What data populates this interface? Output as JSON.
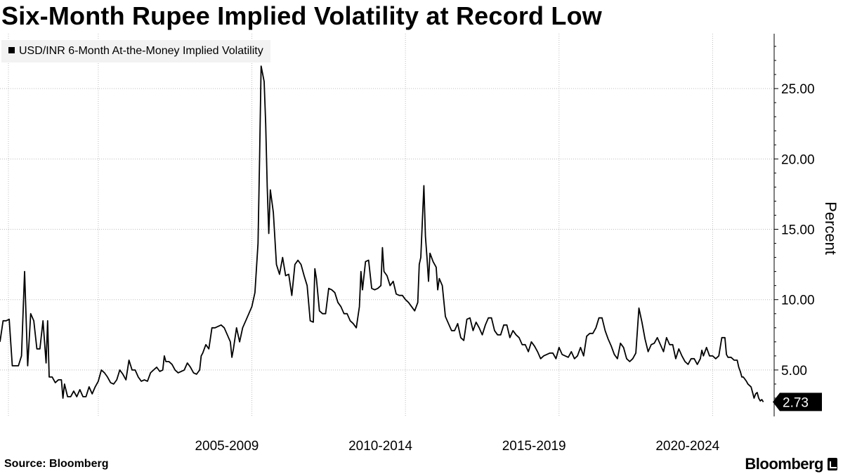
{
  "header": {
    "title": "Six-Month Rupee Implied Volatility at Record Low"
  },
  "legend": {
    "label": "USD/INR 6-Month At-the-Money Implied Volatility",
    "color": "#000000"
  },
  "footer": {
    "source": "Source: Bloomberg",
    "brand": "Bloomberg"
  },
  "chart_data": {
    "type": "line",
    "title": "Six-Month Rupee Implied Volatility at Record Low",
    "xlabel": "",
    "ylabel": "Percent",
    "ylim": [
      1.7,
      28.9
    ],
    "xlim": [
      2000.0,
      2024.7
    ],
    "y_ticks": [
      5,
      10,
      15,
      20,
      25
    ],
    "y_tick_labels": [
      "5.00",
      "10.00",
      "15.00",
      "20.00",
      "25.00"
    ],
    "x_tick_labels": [
      "2005-2009",
      "2010-2014",
      "2015-2019",
      "2020-2024"
    ],
    "x_label_centers": [
      2007.5,
      2012.5,
      2017.5,
      2022.5
    ],
    "x_gridlines": [
      2000.0,
      2003.2,
      2008.2,
      2013.2,
      2018.2,
      2023.2
    ],
    "grid": true,
    "y_axis_position": "right",
    "last_value": 2.73,
    "last_value_label": "2.73",
    "series": [
      {
        "name": "USD/INR 6-Month At-the-Money Implied Volatility",
        "color": "#000000",
        "points": [
          [
            2000.0,
            7.0
          ],
          [
            2000.1,
            8.5
          ],
          [
            2000.2,
            8.5
          ],
          [
            2000.3,
            8.6
          ],
          [
            2000.4,
            5.3
          ],
          [
            2000.5,
            5.3
          ],
          [
            2000.6,
            5.3
          ],
          [
            2000.7,
            6.0
          ],
          [
            2000.8,
            12.0
          ],
          [
            2000.9,
            5.3
          ],
          [
            2001.0,
            9.0
          ],
          [
            2001.1,
            8.5
          ],
          [
            2001.2,
            6.5
          ],
          [
            2001.3,
            6.5
          ],
          [
            2001.4,
            8.5
          ],
          [
            2001.5,
            5.5
          ],
          [
            2001.55,
            8.5
          ],
          [
            2001.6,
            4.5
          ],
          [
            2001.7,
            4.5
          ],
          [
            2001.8,
            4.1
          ],
          [
            2001.9,
            4.3
          ],
          [
            2002.0,
            4.3
          ],
          [
            2002.05,
            3.0
          ],
          [
            2002.1,
            4.0
          ],
          [
            2002.2,
            3.1
          ],
          [
            2002.3,
            3.1
          ],
          [
            2002.4,
            3.5
          ],
          [
            2002.5,
            3.1
          ],
          [
            2002.6,
            3.6
          ],
          [
            2002.7,
            3.1
          ],
          [
            2002.8,
            3.1
          ],
          [
            2002.9,
            3.8
          ],
          [
            2003.0,
            3.3
          ],
          [
            2003.1,
            3.8
          ],
          [
            2003.2,
            4.2
          ],
          [
            2003.3,
            5.0
          ],
          [
            2003.4,
            4.8
          ],
          [
            2003.5,
            4.5
          ],
          [
            2003.6,
            4.1
          ],
          [
            2003.7,
            4.0
          ],
          [
            2003.8,
            4.3
          ],
          [
            2003.9,
            5.0
          ],
          [
            2004.0,
            4.7
          ],
          [
            2004.1,
            4.3
          ],
          [
            2004.2,
            5.7
          ],
          [
            2004.3,
            5.0
          ],
          [
            2004.4,
            5.0
          ],
          [
            2004.5,
            4.5
          ],
          [
            2004.6,
            4.2
          ],
          [
            2004.7,
            4.3
          ],
          [
            2004.8,
            4.2
          ],
          [
            2004.9,
            4.8
          ],
          [
            2005.0,
            5.0
          ],
          [
            2005.1,
            5.2
          ],
          [
            2005.2,
            4.9
          ],
          [
            2005.3,
            5.0
          ],
          [
            2005.35,
            6.0
          ],
          [
            2005.4,
            5.6
          ],
          [
            2005.5,
            5.6
          ],
          [
            2005.6,
            5.4
          ],
          [
            2005.7,
            5.0
          ],
          [
            2005.8,
            4.8
          ],
          [
            2005.9,
            4.9
          ],
          [
            2006.0,
            5.0
          ],
          [
            2006.1,
            5.5
          ],
          [
            2006.2,
            5.2
          ],
          [
            2006.3,
            4.8
          ],
          [
            2006.4,
            4.7
          ],
          [
            2006.5,
            5.0
          ],
          [
            2006.55,
            6.0
          ],
          [
            2006.6,
            6.2
          ],
          [
            2006.7,
            6.8
          ],
          [
            2006.8,
            6.5
          ],
          [
            2006.9,
            8.0
          ],
          [
            2007.0,
            8.0
          ],
          [
            2007.1,
            8.1
          ],
          [
            2007.2,
            8.2
          ],
          [
            2007.3,
            8.0
          ],
          [
            2007.4,
            7.5
          ],
          [
            2007.5,
            7.0
          ],
          [
            2007.55,
            5.9
          ],
          [
            2007.6,
            6.5
          ],
          [
            2007.7,
            8.0
          ],
          [
            2007.8,
            7.0
          ],
          [
            2007.9,
            8.0
          ],
          [
            2008.0,
            8.5
          ],
          [
            2008.1,
            9.0
          ],
          [
            2008.2,
            9.5
          ],
          [
            2008.3,
            10.5
          ],
          [
            2008.4,
            14.0
          ],
          [
            2008.45,
            20.0
          ],
          [
            2008.5,
            26.6
          ],
          [
            2008.6,
            25.5
          ],
          [
            2008.65,
            22.5
          ],
          [
            2008.7,
            18.0
          ],
          [
            2008.75,
            14.7
          ],
          [
            2008.8,
            17.8
          ],
          [
            2008.9,
            16.2
          ],
          [
            2009.0,
            12.5
          ],
          [
            2009.1,
            11.8
          ],
          [
            2009.2,
            13.0
          ],
          [
            2009.3,
            11.7
          ],
          [
            2009.4,
            11.8
          ],
          [
            2009.5,
            10.3
          ],
          [
            2009.6,
            12.5
          ],
          [
            2009.7,
            12.8
          ],
          [
            2009.8,
            12.5
          ],
          [
            2009.9,
            11.7
          ],
          [
            2010.0,
            11.0
          ],
          [
            2010.1,
            8.5
          ],
          [
            2010.2,
            8.4
          ],
          [
            2010.25,
            12.2
          ],
          [
            2010.3,
            11.5
          ],
          [
            2010.4,
            9.2
          ],
          [
            2010.5,
            9.0
          ],
          [
            2010.6,
            9.0
          ],
          [
            2010.7,
            10.8
          ],
          [
            2010.8,
            10.7
          ],
          [
            2010.9,
            10.5
          ],
          [
            2011.0,
            9.8
          ],
          [
            2011.1,
            9.5
          ],
          [
            2011.2,
            9.0
          ],
          [
            2011.3,
            9.0
          ],
          [
            2011.4,
            8.5
          ],
          [
            2011.5,
            8.3
          ],
          [
            2011.6,
            8.0
          ],
          [
            2011.7,
            9.5
          ],
          [
            2011.75,
            12.0
          ],
          [
            2011.8,
            10.7
          ],
          [
            2011.9,
            12.7
          ],
          [
            2012.0,
            12.8
          ],
          [
            2012.1,
            10.8
          ],
          [
            2012.2,
            10.7
          ],
          [
            2012.3,
            10.8
          ],
          [
            2012.4,
            11.0
          ],
          [
            2012.45,
            13.7
          ],
          [
            2012.5,
            12.0
          ],
          [
            2012.6,
            11.7
          ],
          [
            2012.7,
            11.0
          ],
          [
            2012.8,
            11.3
          ],
          [
            2012.9,
            10.4
          ],
          [
            2013.0,
            10.3
          ],
          [
            2013.1,
            10.3
          ],
          [
            2013.2,
            10.0
          ],
          [
            2013.3,
            9.8
          ],
          [
            2013.4,
            9.5
          ],
          [
            2013.5,
            9.2
          ],
          [
            2013.6,
            9.8
          ],
          [
            2013.65,
            12.5
          ],
          [
            2013.7,
            13.0
          ],
          [
            2013.8,
            18.1
          ],
          [
            2013.85,
            14.5
          ],
          [
            2013.9,
            13.0
          ],
          [
            2013.95,
            11.3
          ],
          [
            2014.0,
            13.3
          ],
          [
            2014.1,
            12.7
          ],
          [
            2014.2,
            12.3
          ],
          [
            2014.25,
            10.7
          ],
          [
            2014.3,
            11.5
          ],
          [
            2014.4,
            11.0
          ],
          [
            2014.5,
            8.8
          ],
          [
            2014.6,
            8.3
          ],
          [
            2014.7,
            7.8
          ],
          [
            2014.8,
            7.8
          ],
          [
            2014.9,
            8.3
          ],
          [
            2015.0,
            7.3
          ],
          [
            2015.1,
            7.1
          ],
          [
            2015.2,
            8.6
          ],
          [
            2015.3,
            8.7
          ],
          [
            2015.4,
            7.8
          ],
          [
            2015.5,
            8.4
          ],
          [
            2015.6,
            8.0
          ],
          [
            2015.7,
            7.5
          ],
          [
            2015.8,
            8.2
          ],
          [
            2015.9,
            8.7
          ],
          [
            2016.0,
            8.7
          ],
          [
            2016.1,
            7.8
          ],
          [
            2016.2,
            7.5
          ],
          [
            2016.3,
            7.5
          ],
          [
            2016.4,
            8.2
          ],
          [
            2016.5,
            8.2
          ],
          [
            2016.6,
            7.3
          ],
          [
            2016.7,
            7.8
          ],
          [
            2016.8,
            7.5
          ],
          [
            2016.9,
            7.3
          ],
          [
            2017.0,
            6.8
          ],
          [
            2017.1,
            6.8
          ],
          [
            2017.2,
            6.3
          ],
          [
            2017.3,
            7.0
          ],
          [
            2017.4,
            6.7
          ],
          [
            2017.5,
            6.3
          ],
          [
            2017.6,
            5.8
          ],
          [
            2017.7,
            6.0
          ],
          [
            2017.8,
            6.1
          ],
          [
            2017.9,
            6.2
          ],
          [
            2018.0,
            6.2
          ],
          [
            2018.1,
            5.8
          ],
          [
            2018.2,
            6.6
          ],
          [
            2018.3,
            6.1
          ],
          [
            2018.4,
            6.0
          ],
          [
            2018.5,
            5.9
          ],
          [
            2018.6,
            6.3
          ],
          [
            2018.7,
            5.8
          ],
          [
            2018.8,
            6.0
          ],
          [
            2018.9,
            6.6
          ],
          [
            2019.0,
            6.0
          ],
          [
            2019.1,
            7.4
          ],
          [
            2019.2,
            7.6
          ],
          [
            2019.3,
            7.6
          ],
          [
            2019.4,
            8.0
          ],
          [
            2019.5,
            8.7
          ],
          [
            2019.6,
            8.7
          ],
          [
            2019.7,
            7.8
          ],
          [
            2019.8,
            7.2
          ],
          [
            2019.9,
            6.7
          ],
          [
            2020.0,
            6.1
          ],
          [
            2020.1,
            5.8
          ],
          [
            2020.2,
            6.9
          ],
          [
            2020.3,
            6.6
          ],
          [
            2020.4,
            5.8
          ],
          [
            2020.5,
            5.6
          ],
          [
            2020.6,
            5.8
          ],
          [
            2020.7,
            6.2
          ],
          [
            2020.8,
            9.4
          ],
          [
            2020.9,
            8.4
          ],
          [
            2021.0,
            7.2
          ],
          [
            2021.1,
            6.3
          ],
          [
            2021.2,
            6.8
          ],
          [
            2021.3,
            6.9
          ],
          [
            2021.4,
            7.3
          ],
          [
            2021.5,
            6.8
          ],
          [
            2021.6,
            6.3
          ],
          [
            2021.7,
            7.3
          ],
          [
            2021.8,
            6.8
          ],
          [
            2021.9,
            6.8
          ],
          [
            2022.0,
            5.8
          ],
          [
            2022.1,
            6.5
          ],
          [
            2022.2,
            6.0
          ],
          [
            2022.3,
            5.6
          ],
          [
            2022.4,
            5.4
          ],
          [
            2022.5,
            5.8
          ],
          [
            2022.6,
            5.8
          ],
          [
            2022.7,
            5.4
          ],
          [
            2022.8,
            5.8
          ],
          [
            2022.85,
            6.4
          ],
          [
            2022.9,
            6.0
          ],
          [
            2023.0,
            6.6
          ],
          [
            2023.1,
            6.0
          ],
          [
            2023.2,
            6.0
          ],
          [
            2023.3,
            5.8
          ],
          [
            2023.4,
            6.0
          ],
          [
            2023.5,
            7.3
          ],
          [
            2023.6,
            7.3
          ],
          [
            2023.65,
            6.1
          ],
          [
            2023.7,
            5.9
          ],
          [
            2023.8,
            5.9
          ],
          [
            2023.9,
            5.7
          ],
          [
            2024.0,
            5.7
          ],
          [
            2024.05,
            5.2
          ],
          [
            2024.1,
            4.9
          ],
          [
            2024.15,
            4.5
          ],
          [
            2024.2,
            4.5
          ],
          [
            2024.3,
            4.2
          ],
          [
            2024.35,
            4.0
          ],
          [
            2024.4,
            3.9
          ],
          [
            2024.45,
            3.8
          ],
          [
            2024.5,
            3.4
          ],
          [
            2024.55,
            3.0
          ],
          [
            2024.6,
            3.3
          ],
          [
            2024.65,
            3.4
          ],
          [
            2024.7,
            3.0
          ],
          [
            2024.75,
            2.8
          ],
          [
            2024.8,
            2.9
          ],
          [
            2024.85,
            2.73
          ]
        ]
      }
    ]
  }
}
